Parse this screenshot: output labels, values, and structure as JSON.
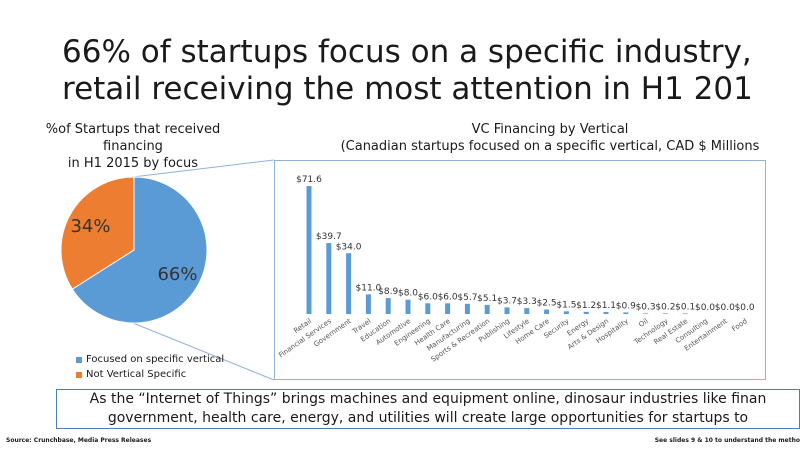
{
  "title": {
    "line1": "66% of startups focus on a specific industry,",
    "line2": "retail receiving the most attention in H1 201"
  },
  "callout": {
    "line1": "As the “Internet of Things” brings machines and equipment online, dinosaur industries like finan",
    "line2": "government, health care, energy, and utilities will create large opportunities for startups to"
  },
  "footer": {
    "source": "Source: Crunchbase, Media Press Releases",
    "note": "See slides 9 & 10 to understand the metho"
  },
  "colors": {
    "blue": "#5b9bd5",
    "orange": "#ed7d31",
    "frame": "#8fb3d9"
  },
  "chart_data": [
    {
      "type": "pie",
      "title_line1": "%of Startups that received financing",
      "title_line2": "in H1 2015 by focus",
      "slices": [
        {
          "name": "Focused on specific vertical",
          "value": 66,
          "label": "66%",
          "color": "#5b9bd5"
        },
        {
          "name": "Not Vertical Specific",
          "value": 34,
          "label": "34%",
          "color": "#ed7d31"
        }
      ],
      "legend_position": "bottom-left"
    },
    {
      "type": "bar",
      "title_line1": "VC Financing by Vertical",
      "title_line2": "(Canadian startups focused on a specific vertical, CAD $ Millions",
      "categories": [
        "Retail",
        "Financial Services",
        "Government",
        "Travel",
        "Education",
        "Automotive",
        "Engineering",
        "Health Care",
        "Manufacturing",
        "Sports & Recreation",
        "Publishing",
        "Lifestyle",
        "Home Care",
        "Security",
        "Energy",
        "Arts & Design",
        "Hospitality",
        "Oil",
        "Technology",
        "Real Estate",
        "Consulting",
        "Entertainment",
        "Food"
      ],
      "values": [
        71.6,
        39.7,
        34.0,
        11.0,
        8.9,
        8.0,
        6.0,
        6.0,
        5.7,
        5.1,
        3.7,
        3.3,
        2.5,
        1.5,
        1.2,
        1.1,
        0.9,
        0.3,
        0.2,
        0.1,
        0.0,
        0.0,
        0.0
      ],
      "labels": [
        "$71.6",
        "$39.7",
        "$34.0",
        "$11.0",
        "$8.9",
        "$8.0",
        "$6.0",
        "$6.0",
        "$5.7",
        "$5.1",
        "$3.7",
        "$3.3",
        "$2.5",
        "$1.5",
        "$1.2",
        "$1.1",
        "$0.9",
        "$0.3",
        "$0.2",
        "$0.1",
        "$0.0",
        "$0.0",
        "$0.0"
      ],
      "ylim": [
        0,
        75
      ],
      "grid": false
    }
  ]
}
